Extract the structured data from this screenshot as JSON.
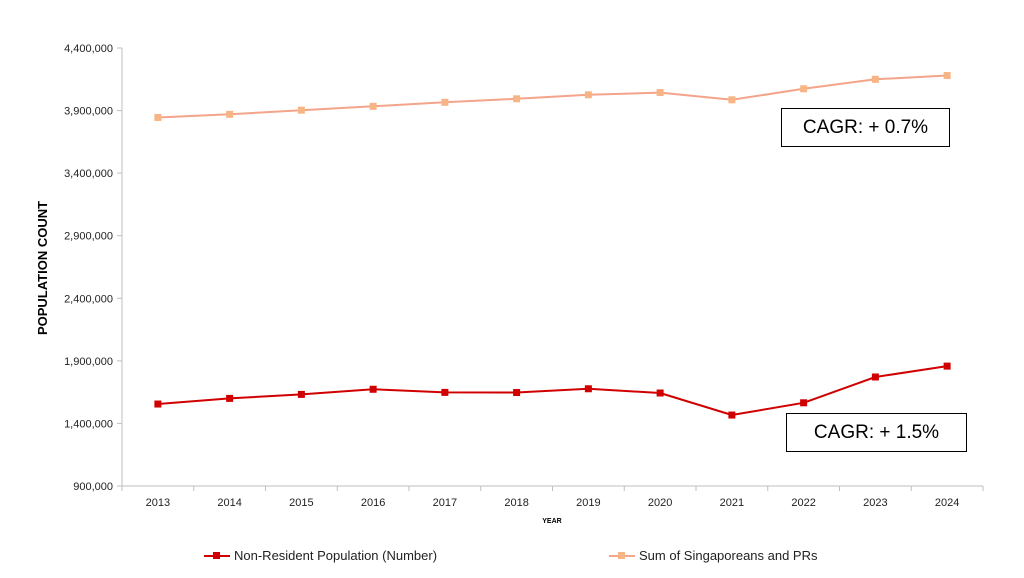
{
  "chart_data": {
    "type": "line",
    "title": "",
    "xlabel": "YEAR",
    "ylabel": "POPULATION COUNT",
    "categories": [
      "2013",
      "2014",
      "2015",
      "2016",
      "2017",
      "2018",
      "2019",
      "2020",
      "2021",
      "2022",
      "2023",
      "2024"
    ],
    "ylim": [
      900000,
      4400000
    ],
    "yticks": [
      900000,
      1400000,
      1900000,
      2400000,
      2900000,
      3400000,
      3900000,
      4400000
    ],
    "ytick_labels": [
      "900,000",
      "1,400,000",
      "1,900,000",
      "2,400,000",
      "2,900,000",
      "3,400,000",
      "3,900,000",
      "4,400,000"
    ],
    "grid": false,
    "legend_position": "bottom",
    "series": [
      {
        "name": "Non-Resident Population (Number)",
        "color": "#d00000",
        "values": [
          1555000,
          1600000,
          1632000,
          1673000,
          1648000,
          1647000,
          1677000,
          1643000,
          1467000,
          1565000,
          1771000,
          1858000
        ]
      },
      {
        "name": "Sum of Singaporeans and PRs",
        "color": "#f4a48a",
        "marker_color": "#f7b585",
        "values": [
          3845000,
          3870000,
          3903000,
          3934000,
          3966000,
          3994000,
          4026000,
          4044000,
          3986000,
          4074000,
          4150000,
          4180000
        ]
      }
    ],
    "annotations": [
      {
        "text": "CAGR: + 0.7%",
        "series": "Sum of Singaporeans and PRs"
      },
      {
        "text": "CAGR: + 1.5%",
        "series": "Non-Resident Population (Number)"
      }
    ]
  }
}
